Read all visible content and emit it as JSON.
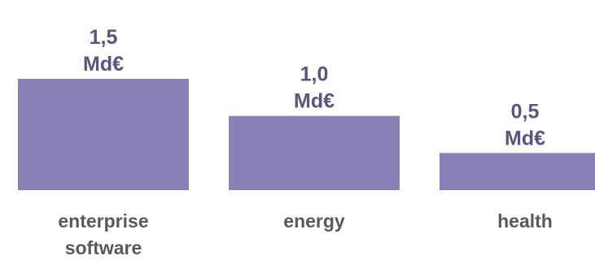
{
  "chart_data": {
    "type": "bar",
    "categories": [
      [
        "enterprise",
        "software"
      ],
      [
        "energy"
      ],
      [
        "health"
      ]
    ],
    "values": [
      1.5,
      1.0,
      0.5
    ],
    "value_labels": [
      [
        "1,5",
        "Md€"
      ],
      [
        "1,0",
        "Md€"
      ],
      [
        "0,5",
        "Md€"
      ]
    ],
    "title": "",
    "xlabel": "",
    "ylabel": "",
    "ylim": [
      0,
      1.5
    ],
    "grid": false,
    "legend": "none",
    "bar_color": "#8b80b6",
    "value_label_color": "#5a5482",
    "category_label_color": "#595959"
  }
}
